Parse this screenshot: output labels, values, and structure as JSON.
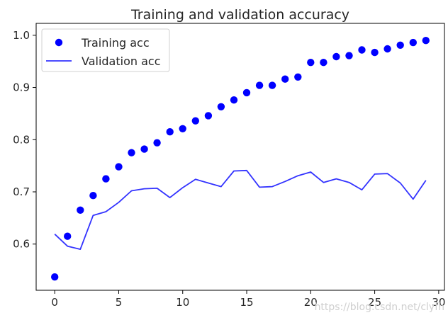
{
  "chart_data": {
    "type": "line",
    "title": "Training and validation accuracy",
    "xlabel": "",
    "ylabel": "",
    "xlim": [
      -1.45,
      30.45
    ],
    "ylim": [
      0.5115,
      1.0228
    ],
    "x_ticks": [
      0,
      5,
      10,
      15,
      20,
      25,
      30
    ],
    "y_ticks": [
      0.6,
      0.7,
      0.8,
      0.9,
      1.0
    ],
    "x_tick_labels": [
      "0",
      "5",
      "10",
      "15",
      "20",
      "25",
      "30"
    ],
    "y_tick_labels": [
      "0.6",
      "0.7",
      "0.8",
      "0.9",
      "1.0"
    ],
    "grid": false,
    "legend_position": "upper-left",
    "series": [
      {
        "name": "Training acc",
        "style": "markers",
        "color": "#0000ff",
        "x": [
          0,
          1,
          2,
          3,
          4,
          5,
          6,
          7,
          8,
          9,
          10,
          11,
          12,
          13,
          14,
          15,
          16,
          17,
          18,
          19,
          20,
          21,
          22,
          23,
          24,
          25,
          26,
          27,
          28,
          29
        ],
        "values": [
          0.537,
          0.615,
          0.665,
          0.693,
          0.725,
          0.748,
          0.775,
          0.782,
          0.794,
          0.815,
          0.821,
          0.836,
          0.846,
          0.863,
          0.876,
          0.89,
          0.904,
          0.904,
          0.916,
          0.92,
          0.948,
          0.948,
          0.959,
          0.961,
          0.972,
          0.967,
          0.974,
          0.981,
          0.986,
          0.99
        ]
      },
      {
        "name": "Validation acc",
        "style": "line",
        "color": "#3333ff",
        "x": [
          0,
          1,
          2,
          3,
          4,
          5,
          6,
          7,
          8,
          9,
          10,
          11,
          12,
          13,
          14,
          15,
          16,
          17,
          18,
          19,
          20,
          21,
          22,
          23,
          24,
          25,
          26,
          27,
          28,
          29
        ],
        "values": [
          0.619,
          0.596,
          0.59,
          0.655,
          0.662,
          0.68,
          0.702,
          0.706,
          0.707,
          0.689,
          0.708,
          0.724,
          0.717,
          0.71,
          0.74,
          0.741,
          0.709,
          0.71,
          0.72,
          0.731,
          0.738,
          0.718,
          0.725,
          0.718,
          0.704,
          0.734,
          0.735,
          0.717,
          0.686,
          0.722
        ]
      }
    ]
  },
  "watermark": "https://blog.csdn.net/clyfh"
}
